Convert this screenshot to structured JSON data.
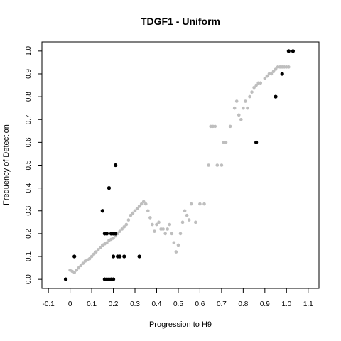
{
  "chart_data": {
    "type": "scatter",
    "title": "TDGF1 - Uniform",
    "xlabel": "Progression to H9",
    "ylabel": "Frequency of Detection",
    "xlim": [
      -0.13,
      1.15
    ],
    "ylim": [
      -0.04,
      1.04
    ],
    "xticks": [
      "-0.1",
      "0",
      "0.1",
      "0.2",
      "0.3",
      "0.4",
      "0.5",
      "0.6",
      "0.7",
      "0.8",
      "0.9",
      "1.0",
      "1.1"
    ],
    "yticks": [
      "0.0",
      "0.1",
      "0.2",
      "0.3",
      "0.4",
      "0.5",
      "0.6",
      "0.7",
      "0.8",
      "0.9",
      "1.0"
    ],
    "grid": false,
    "legend": "none",
    "colors": {
      "series1": "#bebebe",
      "series2": "#000000"
    },
    "series": [
      {
        "x": [
          0.0,
          0.01,
          0.02,
          0.03,
          0.04,
          0.05,
          0.06,
          0.07,
          0.08,
          0.09,
          0.1,
          0.11,
          0.12,
          0.13,
          0.14,
          0.15,
          0.16,
          0.17,
          0.18,
          0.19,
          0.2,
          0.21,
          0.22,
          0.23,
          0.24,
          0.25,
          0.26,
          0.27,
          0.28,
          0.29,
          0.3,
          0.31,
          0.32,
          0.33,
          0.34,
          0.35,
          0.36,
          0.37,
          0.38,
          0.39,
          0.4,
          0.41,
          0.42,
          0.43,
          0.44,
          0.45,
          0.46,
          0.47,
          0.48,
          0.49,
          0.5,
          0.51,
          0.52,
          0.53,
          0.54,
          0.55,
          0.56,
          0.58,
          0.6,
          0.62,
          0.64,
          0.65,
          0.66,
          0.67,
          0.68,
          0.7,
          0.71,
          0.72,
          0.74,
          0.76,
          0.77,
          0.78,
          0.79,
          0.8,
          0.81,
          0.82,
          0.83,
          0.84,
          0.85,
          0.86,
          0.87,
          0.88,
          0.9,
          0.91,
          0.92,
          0.93,
          0.94,
          0.95,
          0.96,
          0.97,
          0.98,
          0.99,
          1.0,
          1.01
        ],
        "y": [
          0.04,
          0.035,
          0.03,
          0.04,
          0.05,
          0.06,
          0.07,
          0.08,
          0.085,
          0.09,
          0.1,
          0.11,
          0.12,
          0.13,
          0.14,
          0.15,
          0.155,
          0.16,
          0.17,
          0.175,
          0.18,
          0.19,
          0.2,
          0.21,
          0.22,
          0.23,
          0.24,
          0.26,
          0.28,
          0.29,
          0.3,
          0.31,
          0.32,
          0.33,
          0.34,
          0.33,
          0.3,
          0.27,
          0.24,
          0.21,
          0.24,
          0.25,
          0.22,
          0.22,
          0.2,
          0.22,
          0.24,
          0.2,
          0.16,
          0.12,
          0.15,
          0.2,
          0.25,
          0.3,
          0.28,
          0.26,
          0.33,
          0.25,
          0.33,
          0.33,
          0.5,
          0.67,
          0.67,
          0.67,
          0.5,
          0.5,
          0.6,
          0.6,
          0.67,
          0.75,
          0.78,
          0.72,
          0.7,
          0.75,
          0.78,
          0.75,
          0.8,
          0.82,
          0.84,
          0.85,
          0.86,
          0.86,
          0.88,
          0.89,
          0.9,
          0.9,
          0.91,
          0.92,
          0.93,
          0.93,
          0.93,
          0.93,
          0.93,
          0.93
        ]
      },
      {
        "x": [
          -0.02,
          0.02,
          0.15,
          0.16,
          0.17,
          0.18,
          0.19,
          0.2,
          0.21,
          0.22,
          0.23,
          0.25,
          0.2,
          0.21,
          0.18,
          0.32,
          0.16,
          0.17,
          0.19,
          0.2,
          0.86,
          0.95,
          0.98,
          1.01,
          1.03
        ],
        "y": [
          0.0,
          0.1,
          0.3,
          0.2,
          0.2,
          0.4,
          0.2,
          0.1,
          0.5,
          0.1,
          0.1,
          0.1,
          0.2,
          0.2,
          0.0,
          0.1,
          0.0,
          0.0,
          0.0,
          0.0,
          0.6,
          0.8,
          0.9,
          1.0,
          1.0
        ]
      }
    ]
  }
}
